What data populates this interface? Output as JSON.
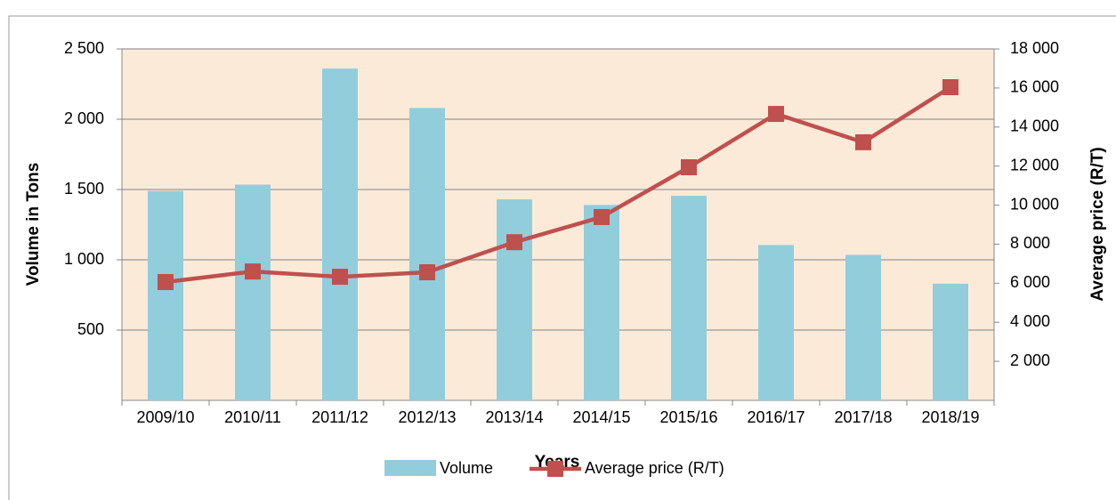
{
  "chart_data": {
    "type": "bar_line",
    "x_label": "Years",
    "y_label": "Volume in Tons",
    "y2_label": "Average price (R/T)",
    "categories": [
      "2009/10",
      "2010/11",
      "2011/12",
      "2012/13",
      "2013/14",
      "2014/15",
      "2015/16",
      "2016/17",
      "2017/18",
      "2018/19"
    ],
    "series": [
      {
        "name": "Volume",
        "type": "bar",
        "color": "#92cddc",
        "values": [
          1490,
          1535,
          2360,
          2080,
          1430,
          1390,
          1455,
          1105,
          1035,
          830
        ]
      },
      {
        "name": "Average price (R/T)",
        "type": "line",
        "axis": "y2",
        "color": "#c0504d",
        "values": [
          6060,
          6600,
          6330,
          6560,
          8100,
          9390,
          11940,
          14670,
          13220,
          16040
        ]
      }
    ],
    "ylim": [
      0,
      2500
    ],
    "yticks": [
      500,
      {
        "value": 1000,
        "label": "1 000"
      },
      {
        "value": 1500,
        "label": "1 500"
      },
      {
        "value": 2000,
        "label": "2 000"
      },
      {
        "value": 2500,
        "label": "2 500"
      }
    ],
    "y2lim": [
      0,
      18000
    ],
    "y2ticks": [
      {
        "value": 2000,
        "label": "2 000"
      },
      {
        "value": 4000,
        "label": "4 000"
      },
      {
        "value": 6000,
        "label": "6 000"
      },
      {
        "value": 8000,
        "label": "8 000"
      },
      {
        "value": 10000,
        "label": "10 000"
      },
      {
        "value": 12000,
        "label": "12 000"
      },
      {
        "value": 14000,
        "label": "14 000"
      },
      {
        "value": 16000,
        "label": "16 000"
      },
      {
        "value": 18000,
        "label": "18 000"
      }
    ],
    "grid": true,
    "legend": "bottom"
  }
}
